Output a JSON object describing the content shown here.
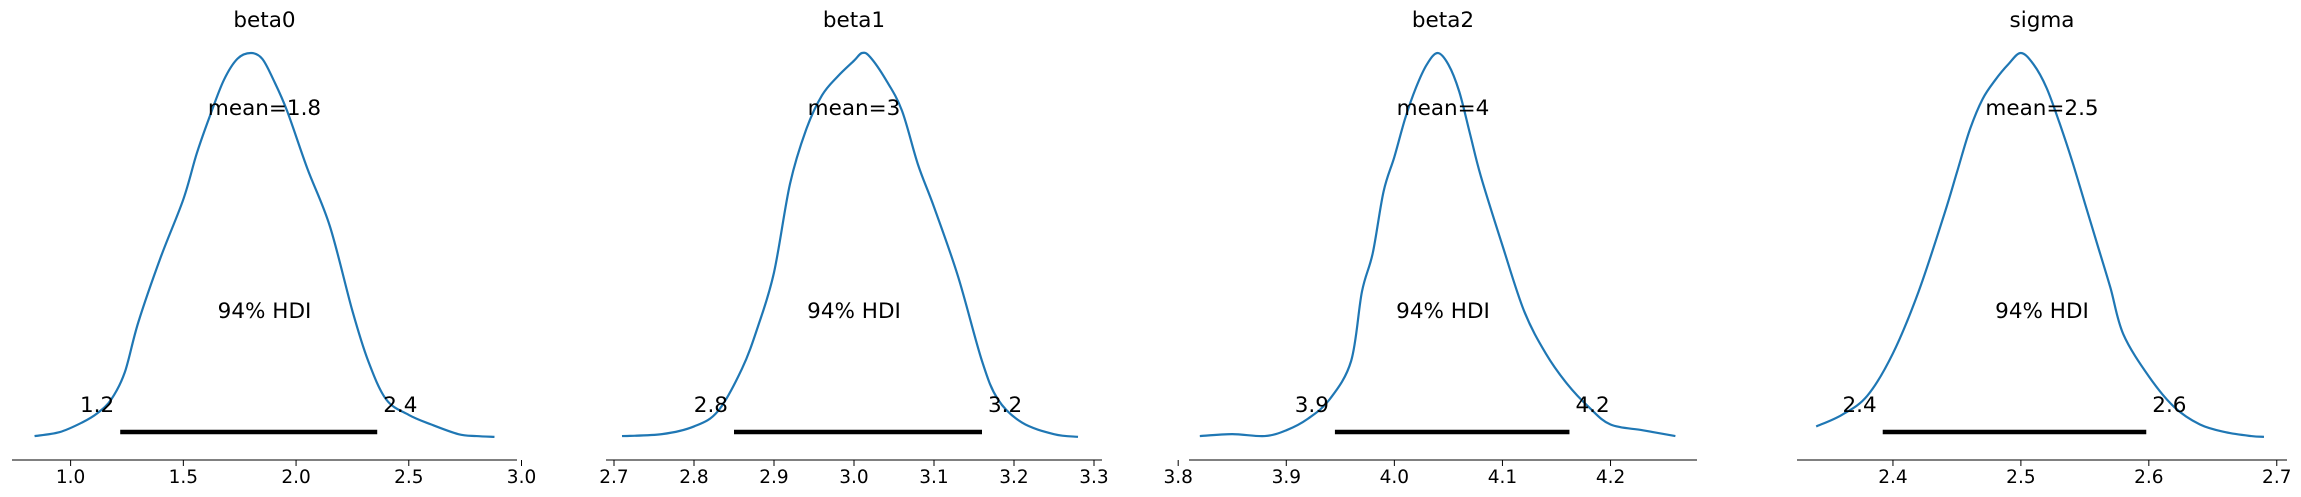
{
  "chart_data": [
    {
      "type": "line",
      "title": "beta0",
      "mean_label": "mean=1.8",
      "hdi_label": "94% HDI",
      "hdi_low_label": "1.2",
      "hdi_high_label": "2.4",
      "hdi": [
        1.22,
        2.36
      ],
      "xlim": [
        0.74,
        2.98
      ],
      "ticks": [
        1.0,
        1.5,
        2.0,
        2.5,
        3.0
      ],
      "tick_labels": [
        "1.0",
        "1.5",
        "2.0",
        "2.5",
        "3.0"
      ],
      "density_x": [
        0.84,
        0.95,
        1.05,
        1.12,
        1.18,
        1.24,
        1.3,
        1.4,
        1.5,
        1.56,
        1.62,
        1.68,
        1.74,
        1.8,
        1.85,
        1.9,
        1.96,
        2.05,
        2.15,
        2.25,
        2.32,
        2.4,
        2.5,
        2.6,
        2.72,
        2.8,
        2.88
      ],
      "density_y": [
        0.005,
        0.015,
        0.04,
        0.065,
        0.1,
        0.17,
        0.3,
        0.47,
        0.62,
        0.74,
        0.84,
        0.93,
        0.985,
        1.0,
        0.985,
        0.93,
        0.85,
        0.7,
        0.55,
        0.33,
        0.2,
        0.1,
        0.06,
        0.035,
        0.01,
        0.005,
        0.003
      ]
    },
    {
      "type": "line",
      "title": "beta1",
      "mean_label": "mean=3",
      "hdi_label": "94% HDI",
      "hdi_low_label": "2.8",
      "hdi_high_label": "3.2",
      "hdi": [
        2.85,
        3.16
      ],
      "xlim": [
        2.69,
        3.31
      ],
      "ticks": [
        2.7,
        2.8,
        2.9,
        3.0,
        3.1,
        3.2,
        3.3
      ],
      "tick_labels": [
        "2.7",
        "2.8",
        "2.9",
        "3.0",
        "3.1",
        "3.2",
        "3.3"
      ],
      "density_x": [
        2.71,
        2.76,
        2.8,
        2.83,
        2.86,
        2.88,
        2.9,
        2.92,
        2.94,
        2.96,
        2.98,
        3.0,
        3.01,
        3.02,
        3.04,
        3.06,
        3.08,
        3.1,
        3.13,
        3.16,
        3.18,
        3.21,
        3.25,
        3.28
      ],
      "density_y": [
        0.005,
        0.01,
        0.03,
        0.07,
        0.18,
        0.29,
        0.43,
        0.66,
        0.8,
        0.89,
        0.94,
        0.98,
        1.0,
        0.99,
        0.93,
        0.85,
        0.71,
        0.6,
        0.42,
        0.2,
        0.1,
        0.04,
        0.01,
        0.003
      ]
    },
    {
      "type": "line",
      "title": "beta2",
      "mean_label": "mean=4",
      "hdi_label": "94% HDI",
      "hdi_low_label": "3.9",
      "hdi_high_label": "4.2",
      "hdi": [
        3.945,
        4.162
      ],
      "xlim": [
        3.81,
        4.28
      ],
      "ticks": [
        3.8,
        3.9,
        4.0,
        4.1,
        4.2
      ],
      "tick_labels": [
        "3.8",
        "3.9",
        "4.0",
        "4.1",
        "4.2"
      ],
      "density_x": [
        3.82,
        3.85,
        3.88,
        3.9,
        3.92,
        3.94,
        3.96,
        3.97,
        3.98,
        3.99,
        4.0,
        4.01,
        4.02,
        4.03,
        4.04,
        4.05,
        4.06,
        4.07,
        4.08,
        4.1,
        4.12,
        4.14,
        4.16,
        4.18,
        4.2,
        4.23,
        4.26
      ],
      "density_y": [
        0.005,
        0.01,
        0.005,
        0.02,
        0.05,
        0.1,
        0.2,
        0.38,
        0.48,
        0.64,
        0.73,
        0.83,
        0.91,
        0.97,
        1.0,
        0.97,
        0.9,
        0.79,
        0.68,
        0.5,
        0.33,
        0.22,
        0.14,
        0.08,
        0.035,
        0.02,
        0.005
      ]
    },
    {
      "type": "line",
      "title": "sigma",
      "mean_label": "mean=2.5",
      "hdi_label": "94% HDI",
      "hdi_low_label": "2.4",
      "hdi_high_label": "2.6",
      "hdi": [
        2.392,
        2.598
      ],
      "xlim": [
        2.325,
        2.708
      ],
      "ticks": [
        2.4,
        2.5,
        2.6,
        2.7
      ],
      "tick_labels": [
        "2.4",
        "2.5",
        "2.6",
        "2.7"
      ],
      "density_x": [
        2.34,
        2.36,
        2.38,
        2.4,
        2.42,
        2.44,
        2.45,
        2.46,
        2.47,
        2.48,
        2.49,
        2.5,
        2.51,
        2.52,
        2.53,
        2.54,
        2.55,
        2.56,
        2.57,
        2.58,
        2.6,
        2.62,
        2.64,
        2.66,
        2.68,
        2.69
      ],
      "density_y": [
        0.03,
        0.06,
        0.11,
        0.22,
        0.38,
        0.58,
        0.69,
        0.8,
        0.88,
        0.93,
        0.97,
        1.0,
        0.97,
        0.91,
        0.82,
        0.72,
        0.61,
        0.5,
        0.39,
        0.27,
        0.16,
        0.08,
        0.035,
        0.015,
        0.005,
        0.003
      ]
    }
  ],
  "colors": {
    "density_line": "#1f77b4",
    "hdi_bar": "#000000",
    "text": "#000000"
  }
}
